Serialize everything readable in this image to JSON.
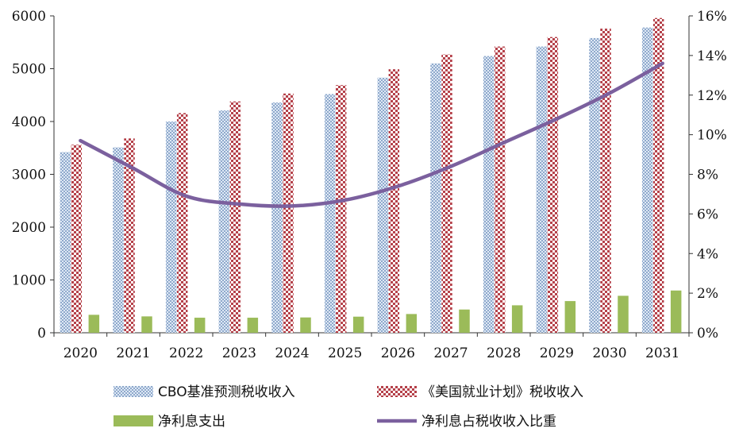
{
  "chart_data": {
    "type": "bar",
    "categories": [
      "2020",
      "2021",
      "2022",
      "2023",
      "2024",
      "2025",
      "2026",
      "2027",
      "2028",
      "2029",
      "2030",
      "2031"
    ],
    "series": [
      {
        "name": "CBO基准预测税收收入",
        "kind": "bar",
        "axis": "left",
        "color": "#9bb6d6",
        "values": [
          3420,
          3510,
          4000,
          4210,
          4360,
          4520,
          4830,
          5100,
          5240,
          5420,
          5580,
          5780
        ]
      },
      {
        "name": "《美国就业计划》税收收入",
        "kind": "bar",
        "axis": "left",
        "color": "#b5414a",
        "values": [
          3560,
          3680,
          4160,
          4380,
          4530,
          4690,
          4990,
          5270,
          5420,
          5600,
          5760,
          5960
        ]
      },
      {
        "name": "净利息支出",
        "kind": "bar",
        "axis": "left",
        "color": "#9bbb59",
        "values": [
          340,
          310,
          285,
          285,
          290,
          305,
          355,
          440,
          520,
          600,
          700,
          800
        ]
      },
      {
        "name": "净利息占税收收入比重",
        "kind": "line",
        "axis": "right",
        "color": "#7b609e",
        "values": [
          9.7,
          8.3,
          6.9,
          6.5,
          6.4,
          6.7,
          7.4,
          8.4,
          9.6,
          10.8,
          12.1,
          13.6
        ]
      }
    ],
    "y_left": {
      "ylim": [
        0,
        6000
      ],
      "ticks": [
        "0",
        "1000",
        "2000",
        "3000",
        "4000",
        "5000",
        "6000"
      ]
    },
    "y_right": {
      "ylim": [
        0,
        16
      ],
      "ticks": [
        "0%",
        "2%",
        "4%",
        "6%",
        "8%",
        "10%",
        "12%",
        "14%",
        "16%"
      ]
    },
    "legend_position": "bottom",
    "grid": false
  }
}
